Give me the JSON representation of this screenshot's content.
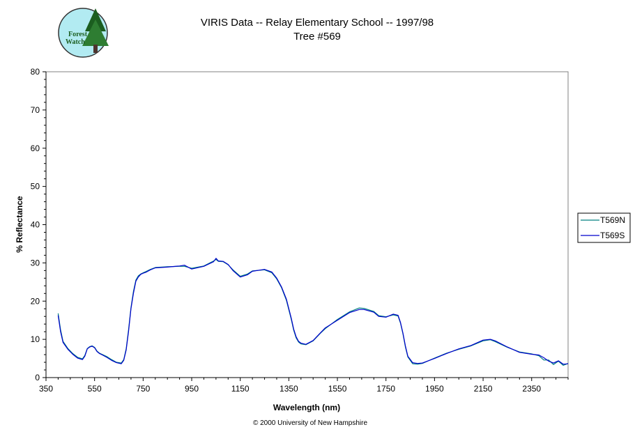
{
  "header": {
    "title_line1": "VIRIS Data -- Relay Elementary School -- 1997/98",
    "title_line2": "Tree #569"
  },
  "logo": {
    "line1": "Forest",
    "line2": "Watch"
  },
  "footer": {
    "copyright": "© 2000 University of New Hampshire"
  },
  "chart_data": {
    "type": "line",
    "title": "VIRIS Data -- Relay Elementary School -- 1997/98",
    "subtitle": "Tree #569",
    "xlabel": "Wavelength (nm)",
    "ylabel": "% Reflectance",
    "xlim": [
      350,
      2500
    ],
    "ylim": [
      0,
      80
    ],
    "xticks": [
      350,
      550,
      750,
      950,
      1150,
      1350,
      1550,
      1750,
      1950,
      2150,
      2350
    ],
    "yticks": [
      0,
      10,
      20,
      30,
      40,
      50,
      60,
      70,
      80
    ],
    "grid": false,
    "legend": "right",
    "series": [
      {
        "name": "T569N",
        "color": "#008080",
        "x": [
          400,
          410,
          420,
          440,
          460,
          480,
          500,
          510,
          520,
          530,
          540,
          550,
          560,
          570,
          580,
          600,
          620,
          640,
          660,
          670,
          680,
          690,
          700,
          710,
          720,
          730,
          740,
          750,
          760,
          780,
          800,
          850,
          900,
          920,
          950,
          1000,
          1040,
          1050,
          1060,
          1080,
          1100,
          1120,
          1150,
          1180,
          1200,
          1250,
          1280,
          1300,
          1320,
          1340,
          1360,
          1370,
          1380,
          1390,
          1400,
          1420,
          1450,
          1480,
          1500,
          1550,
          1600,
          1640,
          1660,
          1700,
          1720,
          1750,
          1780,
          1800,
          1810,
          1820,
          1830,
          1840,
          1860,
          1880,
          1900,
          1950,
          2000,
          2050,
          2100,
          2150,
          2180,
          2200,
          2250,
          2300,
          2350,
          2380,
          2400,
          2420,
          2440,
          2460,
          2480,
          2500
        ],
        "y": [
          16.8,
          12.5,
          9.5,
          7.6,
          6.3,
          5.3,
          4.9,
          5.8,
          7.6,
          8.1,
          8.3,
          7.9,
          6.9,
          6.4,
          6.1,
          5.5,
          4.7,
          4.0,
          3.8,
          4.7,
          7.5,
          12.5,
          18.3,
          22.5,
          25.5,
          26.6,
          27.1,
          27.4,
          27.7,
          28.3,
          28.8,
          29.0,
          29.1,
          29.1,
          28.6,
          29.2,
          30.5,
          30.9,
          30.4,
          30.3,
          29.5,
          28.2,
          26.5,
          27.1,
          27.9,
          28.2,
          27.4,
          25.8,
          23.5,
          20.2,
          15.2,
          12.4,
          10.4,
          9.3,
          8.8,
          8.6,
          9.6,
          11.6,
          12.8,
          15.2,
          17.2,
          18.2,
          18.1,
          17.3,
          16.2,
          15.9,
          16.4,
          16.1,
          14.2,
          11.4,
          8.0,
          5.4,
          3.6,
          3.5,
          3.7,
          5.1,
          6.4,
          7.4,
          8.3,
          9.6,
          9.9,
          9.4,
          7.9,
          6.7,
          6.2,
          5.7,
          4.6,
          4.6,
          3.4,
          4.3,
          3.2,
          3.7
        ]
      },
      {
        "name": "T569S",
        "color": "#0000cc",
        "x": [
          400,
          410,
          420,
          440,
          460,
          480,
          500,
          510,
          520,
          530,
          540,
          550,
          560,
          570,
          580,
          600,
          620,
          640,
          660,
          670,
          680,
          690,
          700,
          710,
          720,
          730,
          740,
          750,
          760,
          780,
          800,
          850,
          900,
          920,
          950,
          1000,
          1040,
          1050,
          1060,
          1080,
          1100,
          1120,
          1150,
          1180,
          1200,
          1250,
          1280,
          1300,
          1320,
          1340,
          1360,
          1370,
          1380,
          1390,
          1400,
          1420,
          1450,
          1480,
          1500,
          1550,
          1600,
          1640,
          1660,
          1700,
          1720,
          1750,
          1780,
          1800,
          1810,
          1820,
          1830,
          1840,
          1860,
          1880,
          1900,
          1950,
          2000,
          2050,
          2100,
          2150,
          2180,
          2200,
          2250,
          2300,
          2350,
          2380,
          2400,
          2420,
          2440,
          2460,
          2480,
          2500
        ],
        "y": [
          16.3,
          12.0,
          9.2,
          7.4,
          6.1,
          5.1,
          4.7,
          5.6,
          7.5,
          8.0,
          8.2,
          7.8,
          6.8,
          6.3,
          6.0,
          5.3,
          4.5,
          3.9,
          3.6,
          4.5,
          7.2,
          12.0,
          18.0,
          22.0,
          25.2,
          26.3,
          27.0,
          27.3,
          27.5,
          28.2,
          28.7,
          28.9,
          29.2,
          29.4,
          28.4,
          29.1,
          30.3,
          31.2,
          30.5,
          30.4,
          29.6,
          28.0,
          26.3,
          26.9,
          27.8,
          28.3,
          27.6,
          26.0,
          23.7,
          20.5,
          15.5,
          12.7,
          10.7,
          9.5,
          9.0,
          8.7,
          9.7,
          11.7,
          13.0,
          15.0,
          17.0,
          17.8,
          17.8,
          17.1,
          16.0,
          15.8,
          16.6,
          16.3,
          14.4,
          11.6,
          8.3,
          5.6,
          3.9,
          3.7,
          3.8,
          5.0,
          6.3,
          7.5,
          8.4,
          9.8,
          10.0,
          9.6,
          8.0,
          6.6,
          6.1,
          5.9,
          5.2,
          4.3,
          3.8,
          4.4,
          3.5,
          3.6
        ]
      }
    ]
  }
}
